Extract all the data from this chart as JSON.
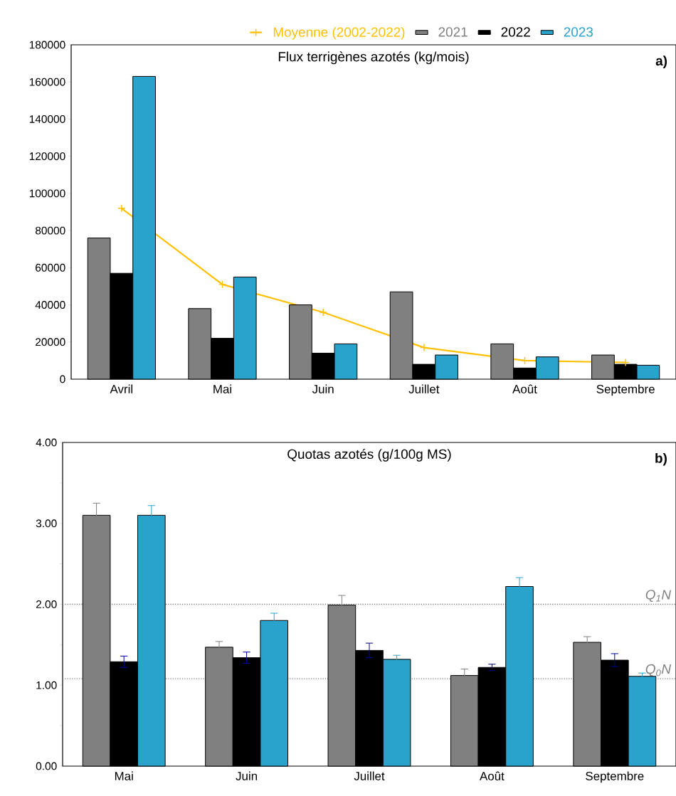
{
  "chart_data": [
    {
      "type": "bar",
      "title": "Flux terrigènes azotés (kg/mois)",
      "categories": [
        "Avril",
        "Mai",
        "Juin",
        "Juillet",
        "Août",
        "Septembre"
      ],
      "series": [
        {
          "name": "Moyenne (2002-2022)",
          "type": "line",
          "marker": "cross",
          "color": "#ffc000",
          "values": [
            92000,
            51000,
            36000,
            17000,
            10000,
            9000
          ]
        },
        {
          "name": "2021",
          "color": "#808080",
          "values": [
            76000,
            38000,
            40000,
            47000,
            19000,
            13000
          ]
        },
        {
          "name": "2022",
          "color": "#000000",
          "values": [
            57000,
            22000,
            14000,
            8000,
            6000,
            8000
          ]
        },
        {
          "name": "2023",
          "color": "#29a3cc",
          "values": [
            163000,
            55000,
            19000,
            13000,
            12000,
            7500
          ]
        }
      ],
      "ylim": [
        0,
        180000
      ],
      "yticks": [
        0,
        20000,
        40000,
        60000,
        80000,
        100000,
        120000,
        140000,
        160000,
        180000
      ],
      "legend": "top",
      "annotations": [
        "a)"
      ]
    },
    {
      "type": "bar",
      "title": "Quotas azotés (g/100g MS)",
      "categories": [
        "Mai",
        "Juin",
        "Juillet",
        "Août",
        "Septembre"
      ],
      "series": [
        {
          "color": "#808080",
          "values": [
            3.1,
            1.47,
            1.99,
            1.12,
            1.53
          ],
          "errors": [
            0.15,
            0.07,
            0.12,
            0.08,
            0.07
          ]
        },
        {
          "color": "#000000",
          "values": [
            1.29,
            1.34,
            1.43,
            1.22,
            1.31
          ],
          "errors": [
            0.07,
            0.07,
            0.09,
            0.04,
            0.08
          ]
        },
        {
          "color": "#29a3cc",
          "values": [
            3.1,
            1.8,
            1.32,
            2.22,
            1.11
          ],
          "errors": [
            0.12,
            0.09,
            0.05,
            0.11,
            0.04
          ]
        }
      ],
      "ylim": [
        0,
        4
      ],
      "yticks": [
        {
          "value": 0,
          "label": "0.00"
        },
        {
          "value": 0.5,
          "label": null
        },
        {
          "value": 1,
          "label": "1.00"
        },
        {
          "value": 1.5,
          "label": null
        },
        {
          "value": 2,
          "label": "2.00"
        },
        {
          "value": 2.5,
          "label": null
        },
        {
          "value": 3,
          "label": "3.00"
        },
        {
          "value": 3.5,
          "label": null
        },
        {
          "value": 4,
          "label": "4.00"
        }
      ],
      "ref_lines": [
        {
          "axis": "y",
          "value": 2.0,
          "label": "Q$_{1}$N",
          "color": "#808080",
          "line_style": "dotted"
        },
        {
          "axis": "y",
          "value": 1.08,
          "label": "Q$_{0}$N",
          "color": "#808080",
          "line_style": "dotted"
        }
      ],
      "annotations": [
        "b)"
      ]
    }
  ]
}
